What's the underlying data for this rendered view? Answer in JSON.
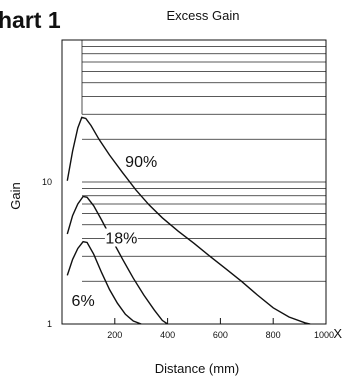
{
  "heading": "hart 1",
  "chart_data": {
    "type": "line",
    "title": "Excess Gain",
    "xlabel": "Distance (mm)",
    "ylabel": "Gain",
    "x_unit_marker": "X",
    "xlim": [
      0,
      1000
    ],
    "ylim": [
      1,
      100
    ],
    "yscale": "log",
    "x_ticks": [
      200,
      400,
      600,
      800,
      1000
    ],
    "x_tick_labels": [
      "200",
      "400",
      "600",
      "800",
      "1000"
    ],
    "y_ticks": [
      1,
      10
    ],
    "y_tick_labels": [
      "1",
      "10"
    ],
    "grid": "horizontal",
    "series": [
      {
        "name": "90%",
        "x": [
          20,
          40,
          60,
          75,
          90,
          110,
          140,
          180,
          230,
          280,
          330,
          380,
          440,
          500,
          560,
          620,
          680,
          740,
          800,
          860,
          920,
          940
        ],
        "y": [
          10.2,
          16.5,
          24,
          28.5,
          28,
          25,
          20,
          15.5,
          11.6,
          8.8,
          6.9,
          5.6,
          4.5,
          3.7,
          3.0,
          2.45,
          2.0,
          1.6,
          1.3,
          1.12,
          1.02,
          1.0
        ]
      },
      {
        "name": "18%",
        "x": [
          20,
          40,
          60,
          80,
          95,
          120,
          150,
          190,
          230,
          270,
          310,
          350,
          380,
          400
        ],
        "y": [
          4.3,
          5.8,
          7.0,
          7.9,
          7.8,
          6.8,
          5.4,
          3.9,
          2.85,
          2.1,
          1.6,
          1.25,
          1.06,
          1.0
        ]
      },
      {
        "name": "6%",
        "x": [
          20,
          40,
          60,
          80,
          95,
          120,
          150,
          180,
          210,
          240,
          270,
          300
        ],
        "y": [
          2.2,
          2.85,
          3.4,
          3.8,
          3.75,
          3.1,
          2.3,
          1.75,
          1.4,
          1.17,
          1.05,
          1.0
        ]
      }
    ],
    "annotations": [
      {
        "text": "90%",
        "x": 300,
        "y": 13.8
      },
      {
        "text": "18%",
        "x": 225,
        "y": 4.0
      },
      {
        "text": "6%",
        "x": 80,
        "y": 1.45
      }
    ]
  }
}
